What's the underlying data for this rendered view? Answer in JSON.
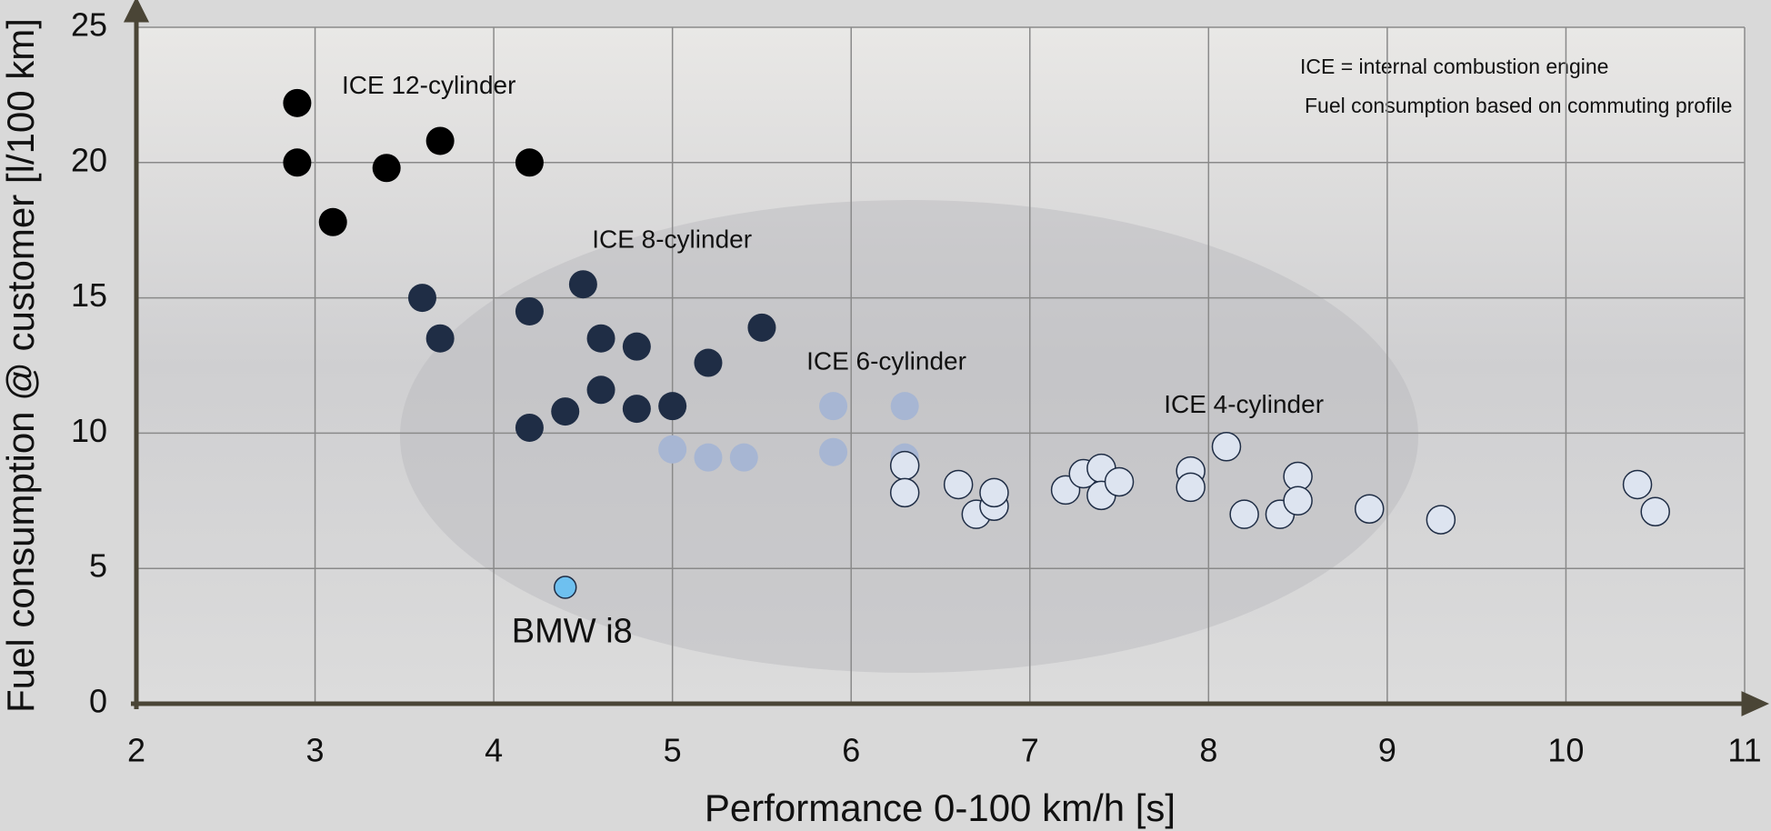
{
  "chart_data": {
    "type": "scatter",
    "xlabel": "Performance 0-100 km/h [s]",
    "ylabel": "Fuel consumption @ customer  [l/100 km]",
    "xlim": [
      2,
      11
    ],
    "xticks": [
      2,
      3,
      4,
      5,
      6,
      7,
      8,
      9,
      10,
      11
    ],
    "ylim": [
      0,
      25
    ],
    "yticks": [
      0,
      5,
      10,
      15,
      20,
      25
    ],
    "grid": true,
    "annotations": [
      "ICE =  internal combustion engine",
      "Fuel consumption based on commuting profile"
    ],
    "series": [
      {
        "name": "ICE 12-cylinder",
        "color": "#000000",
        "x": [
          2.9,
          2.9,
          3.1,
          3.4,
          3.7,
          4.2
        ],
        "values": [
          22.2,
          20,
          17.8,
          19.8,
          20.8,
          20
        ]
      },
      {
        "name": "ICE 8-cylinder",
        "color": "#1f2d45",
        "x": [
          3.6,
          3.7,
          4.2,
          4.2,
          4.4,
          4.5,
          4.6,
          4.6,
          4.8,
          4.8,
          5.0,
          5.2,
          5.5
        ],
        "values": [
          15,
          13.5,
          14.5,
          10.2,
          10.8,
          15.5,
          13.5,
          11.6,
          13.2,
          10.9,
          11,
          12.6,
          13.9
        ]
      },
      {
        "name": "ICE 6-cylinder",
        "color": "#a7b6d3",
        "x": [
          5.0,
          5.2,
          5.4,
          5.9,
          5.9,
          6.3,
          6.3
        ],
        "values": [
          9.4,
          9.1,
          9.1,
          11,
          9.3,
          11,
          9.1
        ]
      },
      {
        "name": "ICE 4-cylinder",
        "color": "#dde4f0",
        "x": [
          6.3,
          6.3,
          6.6,
          6.7,
          6.8,
          6.8,
          7.2,
          7.3,
          7.4,
          7.4,
          7.5,
          7.9,
          7.9,
          8.1,
          8.2,
          8.4,
          8.5,
          8.5,
          8.9,
          9.3,
          10.4,
          10.5
        ],
        "values": [
          8.8,
          7.8,
          8.1,
          7.0,
          7.3,
          7.8,
          7.9,
          8.5,
          8.7,
          7.7,
          8.2,
          8.6,
          8.0,
          9.5,
          7.0,
          7.0,
          8.4,
          7.5,
          7.2,
          6.8,
          8.1,
          7.1
        ]
      },
      {
        "name": "BMW i8",
        "color": "#6ec0ef",
        "x": [
          4.4
        ],
        "values": [
          4.3
        ]
      }
    ]
  }
}
